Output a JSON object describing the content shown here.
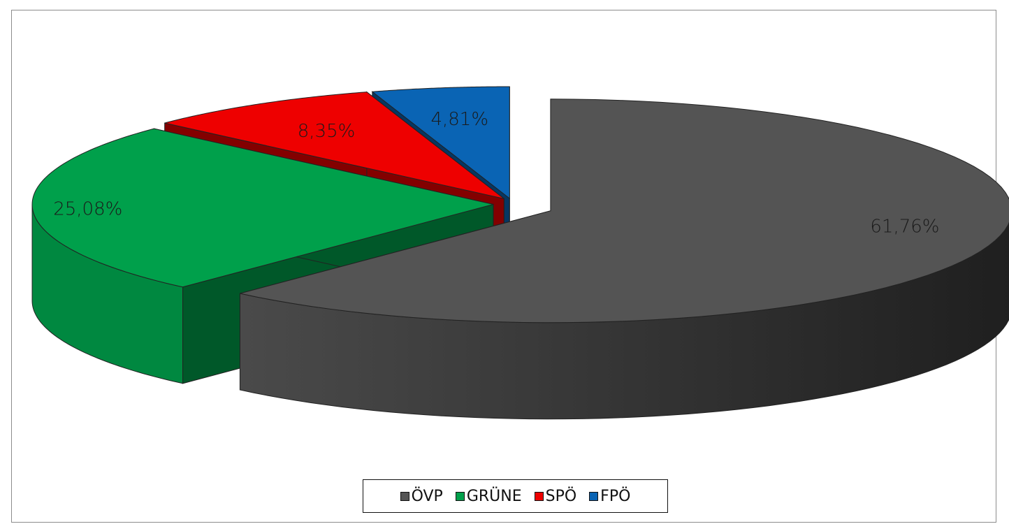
{
  "chart_data": {
    "type": "pie",
    "three_d": true,
    "exploded": true,
    "title": "",
    "categories": [
      "ÖVP",
      "GRÜNE",
      "SPÖ",
      "FPÖ"
    ],
    "values": [
      61.76,
      25.08,
      8.35,
      4.81
    ],
    "data_labels": [
      "61,76%",
      "25,08%",
      "8,35%",
      "4,81%"
    ],
    "colors": [
      "#545454",
      "#00a04b",
      "#ee0000",
      "#0a64b4"
    ],
    "legend_position": "bottom"
  }
}
